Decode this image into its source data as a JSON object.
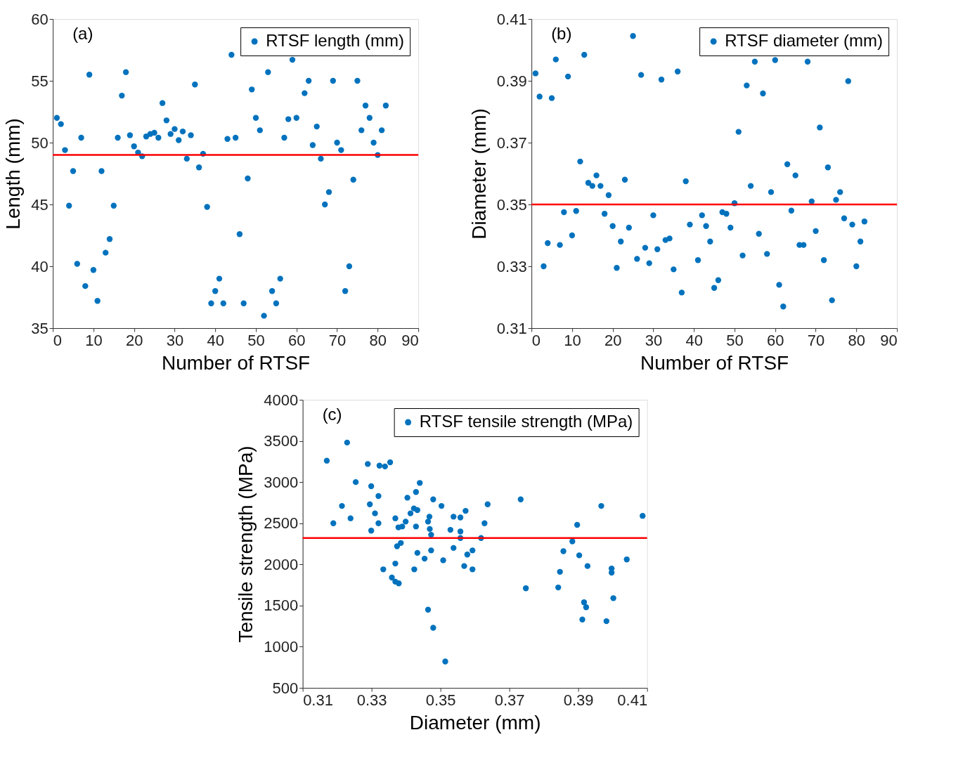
{
  "chart_data": [
    {
      "type": "scatter",
      "xlabel": "Number of RTSF",
      "ylabel": "Length (mm)",
      "annotations": [
        "(a)"
      ],
      "legend": "top right",
      "marker": "circle",
      "grid": false,
      "xlim": [
        0,
        90
      ],
      "xticks": [
        0,
        10,
        20,
        30,
        40,
        50,
        60,
        70,
        80,
        90
      ],
      "ylim": [
        35,
        60
      ],
      "yticks": [
        35,
        40,
        45,
        50,
        55,
        60
      ],
      "x": [
        1,
        2,
        3,
        4,
        5,
        6,
        7,
        8,
        9,
        10,
        11,
        12,
        13,
        14,
        15,
        16,
        17,
        18,
        19,
        20,
        21,
        22,
        23,
        24,
        25,
        26,
        27,
        28,
        29,
        30,
        31,
        32,
        33,
        34,
        35,
        36,
        37,
        38,
        39,
        40,
        41,
        42,
        43,
        44,
        45,
        46,
        47,
        48,
        49,
        50,
        51,
        52,
        53,
        54,
        55,
        56,
        57,
        58,
        59,
        60,
        62,
        63,
        64,
        65,
        66,
        67,
        68,
        69,
        70,
        71,
        72,
        73,
        74,
        75,
        76,
        77,
        78,
        79,
        80,
        81,
        82
      ],
      "series": [
        {
          "name": "RTSF length (mm)",
          "color": "#0072bd",
          "values": [
            52.0,
            51.5,
            49.4,
            44.9,
            47.7,
            40.2,
            50.4,
            38.4,
            55.5,
            39.7,
            37.2,
            47.7,
            41.1,
            42.2,
            44.9,
            50.4,
            53.8,
            55.7,
            50.6,
            49.7,
            49.2,
            48.9,
            50.5,
            50.7,
            50.8,
            50.4,
            53.2,
            51.8,
            50.7,
            51.1,
            50.2,
            50.9,
            48.7,
            50.6,
            54.7,
            48.0,
            49.1,
            44.8,
            37.0,
            38.0,
            39.0,
            37.0,
            50.3,
            57.1,
            50.4,
            42.6,
            37.0,
            47.1,
            54.3,
            52.0,
            51.0,
            36.0,
            55.7,
            38.0,
            37.0,
            39.0,
            50.4,
            51.9,
            56.7,
            52.0,
            54.0,
            55.0,
            49.8,
            51.3,
            48.7,
            45.0,
            46.0,
            55.0,
            50.0,
            49.4,
            38.0,
            40.0,
            47.0,
            55.0,
            51.0,
            53.0,
            52.0,
            50.0,
            49.0,
            51.0,
            53.0
          ]
        }
      ],
      "ref_lines": [
        {
          "axis": "y",
          "value": 49,
          "color": "#ff0000"
        }
      ]
    },
    {
      "type": "scatter",
      "xlabel": "Number of RTSF",
      "ylabel": "Diameter (mm)",
      "annotations": [
        "(b)"
      ],
      "legend": "top right",
      "marker": "circle",
      "grid": false,
      "xlim": [
        0,
        90
      ],
      "xticks": [
        0,
        10,
        20,
        30,
        40,
        50,
        60,
        70,
        80,
        90
      ],
      "ylim": [
        0.31,
        0.41
      ],
      "yticks": [
        0.31,
        0.33,
        0.35,
        0.37,
        0.39,
        0.41
      ],
      "x": [
        1,
        2,
        3,
        4,
        5,
        6,
        7,
        8,
        9,
        10,
        11,
        12,
        13,
        14,
        15,
        16,
        17,
        18,
        19,
        20,
        21,
        22,
        23,
        24,
        25,
        26,
        27,
        28,
        29,
        30,
        31,
        32,
        33,
        34,
        35,
        36,
        37,
        38,
        39,
        41,
        42,
        43,
        44,
        45,
        46,
        47,
        48,
        49,
        50,
        51,
        52,
        53,
        54,
        55,
        56,
        57,
        58,
        59,
        60,
        61,
        62,
        63,
        64,
        65,
        66,
        67,
        68,
        69,
        70,
        71,
        72,
        73,
        74,
        75,
        76,
        77,
        78,
        79,
        80,
        81,
        82
      ],
      "series": [
        {
          "name": "RTSF diameter (mm)",
          "color": "#0072bd",
          "values": [
            0.3924,
            0.3849,
            0.33,
            0.3375,
            0.3844,
            0.3969,
            0.3369,
            0.3475,
            0.3914,
            0.34,
            0.3479,
            0.3639,
            0.3984,
            0.357,
            0.356,
            0.3594,
            0.356,
            0.347,
            0.353,
            0.343,
            0.3295,
            0.338,
            0.358,
            0.3425,
            0.4045,
            0.3324,
            0.3919,
            0.336,
            0.331,
            0.3465,
            0.3355,
            0.3904,
            0.3385,
            0.339,
            0.329,
            0.393,
            0.3215,
            0.3575,
            0.3435,
            0.332,
            0.3465,
            0.343,
            0.338,
            0.323,
            0.3255,
            0.3475,
            0.347,
            0.3425,
            0.3504,
            0.3735,
            0.3335,
            0.3885,
            0.356,
            0.3962,
            0.3405,
            0.3859,
            0.334,
            0.354,
            0.3967,
            0.324,
            0.317,
            0.363,
            0.348,
            0.3594,
            0.3369,
            0.3369,
            0.3962,
            0.351,
            0.3414,
            0.3749,
            0.332,
            0.362,
            0.319,
            0.3515,
            0.354,
            0.3455,
            0.3899,
            0.3435,
            0.33,
            0.338,
            0.3445
          ]
        }
      ],
      "ref_lines": [
        {
          "axis": "y",
          "value": 0.35,
          "color": "#ff0000"
        }
      ]
    },
    {
      "type": "scatter",
      "xlabel": "Diameter (mm)",
      "ylabel": "Tensile strength (MPa)",
      "annotations": [
        "(c)"
      ],
      "legend": "top right",
      "marker": "circle",
      "grid": false,
      "xlim": [
        0.31,
        0.41
      ],
      "xticks": [
        0.31,
        0.33,
        0.35,
        0.37,
        0.39,
        0.41
      ],
      "ylim": [
        500,
        4000
      ],
      "yticks": [
        500,
        1000,
        1500,
        2000,
        2500,
        3000,
        3500,
        4000
      ],
      "x": [
        0.317,
        0.3229,
        0.3189,
        0.3214,
        0.3239,
        0.3254,
        0.3289,
        0.3299,
        0.3295,
        0.331,
        0.332,
        0.3299,
        0.332,
        0.3323,
        0.3339,
        0.3354,
        0.3334,
        0.3369,
        0.3378,
        0.3389,
        0.3399,
        0.3404,
        0.3413,
        0.3423,
        0.3433,
        0.3429,
        0.344,
        0.3429,
        0.3374,
        0.3385,
        0.3369,
        0.3359,
        0.3369,
        0.3379,
        0.3424,
        0.3433,
        0.3454,
        0.3479,
        0.3468,
        0.3464,
        0.3469,
        0.3473,
        0.3473,
        0.3464,
        0.3479,
        0.3503,
        0.3508,
        0.3514,
        0.3529,
        0.3538,
        0.3538,
        0.3558,
        0.3558,
        0.3558,
        0.3569,
        0.3573,
        0.3578,
        0.3593,
        0.3593,
        0.3618,
        0.3628,
        0.3637,
        0.3733,
        0.3748,
        0.3842,
        0.3847,
        0.3857,
        0.3883,
        0.3897,
        0.3903,
        0.3927,
        0.3917,
        0.3923,
        0.3912,
        0.3967,
        0.3982,
        0.3997,
        0.3997,
        0.4002,
        0.4041,
        0.4087
      ],
      "series": [
        {
          "name": "RTSF tensile strength (MPa)",
          "color": "#0072bd",
          "values": [
            3260,
            3480,
            2500,
            2710,
            2560,
            3000,
            3220,
            2950,
            2730,
            2620,
            2830,
            2410,
            2500,
            3200,
            3190,
            3240,
            1940,
            2560,
            2450,
            2460,
            2520,
            2810,
            2620,
            2680,
            2660,
            2880,
            2990,
            2460,
            2220,
            2260,
            2010,
            1840,
            1790,
            1770,
            1940,
            2140,
            2070,
            2790,
            2580,
            2520,
            2430,
            2360,
            2170,
            1450,
            1230,
            2710,
            2050,
            820,
            2420,
            2580,
            2200,
            2570,
            2400,
            2320,
            1980,
            2650,
            2120,
            2170,
            1940,
            2320,
            2500,
            2730,
            2790,
            1710,
            1720,
            1910,
            2160,
            2280,
            2480,
            2110,
            1980,
            1540,
            1480,
            1330,
            2710,
            1310,
            1950,
            1900,
            1590,
            2060,
            2590
          ]
        }
      ],
      "ref_lines": [
        {
          "axis": "y",
          "value": 2320,
          "color": "#ff0000"
        }
      ]
    }
  ]
}
